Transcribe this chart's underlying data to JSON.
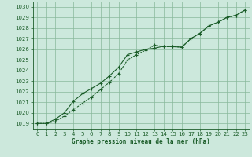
{
  "title": "Graphe pression niveau de la mer (hPa)",
  "background_color": "#cce8dc",
  "grid_color": "#88b89a",
  "line_color": "#1a5c28",
  "xlim": [
    -0.5,
    23.5
  ],
  "ylim": [
    1018.5,
    1030.5
  ],
  "xticks": [
    0,
    1,
    2,
    3,
    4,
    5,
    6,
    7,
    8,
    9,
    10,
    11,
    12,
    13,
    14,
    15,
    16,
    17,
    18,
    19,
    20,
    21,
    22,
    23
  ],
  "yticks": [
    1019,
    1020,
    1021,
    1022,
    1023,
    1024,
    1025,
    1026,
    1027,
    1028,
    1029,
    1030
  ],
  "series1_x": [
    0,
    1,
    2,
    3,
    4,
    5,
    6,
    7,
    8,
    9,
    10,
    11,
    12,
    13,
    14,
    15,
    16,
    17,
    18,
    19,
    20,
    21,
    22,
    23
  ],
  "series1_y": [
    1019.0,
    1019.0,
    1019.4,
    1020.0,
    1021.1,
    1021.8,
    1022.3,
    1022.8,
    1023.5,
    1024.3,
    1025.5,
    1025.75,
    1026.0,
    1026.1,
    1026.3,
    1026.25,
    1026.2,
    1027.0,
    1027.5,
    1028.2,
    1028.55,
    1029.0,
    1029.2,
    1029.7
  ],
  "series2_x": [
    0,
    1,
    2,
    3,
    4,
    5,
    6,
    7,
    8,
    9,
    10,
    11,
    12,
    13,
    14,
    15,
    16,
    17,
    18,
    19,
    20,
    21,
    22,
    23
  ],
  "series2_y": [
    1019.0,
    1019.0,
    1019.2,
    1019.7,
    1020.3,
    1020.9,
    1021.5,
    1022.2,
    1022.9,
    1023.7,
    1025.0,
    1025.5,
    1025.9,
    1026.4,
    1026.25,
    1026.25,
    1026.2,
    1027.0,
    1027.5,
    1028.2,
    1028.55,
    1029.0,
    1029.2,
    1029.7
  ],
  "tick_fontsize": 5,
  "label_fontsize": 5.5
}
